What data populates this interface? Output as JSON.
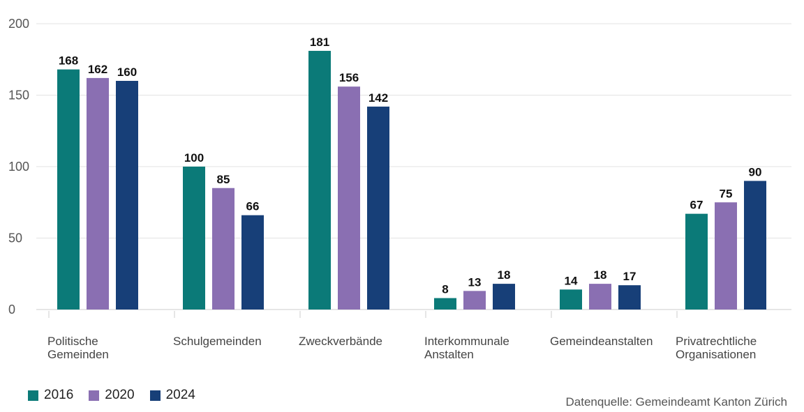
{
  "chart_data": {
    "type": "bar",
    "categories": [
      [
        "Politische",
        "Gemeinden"
      ],
      [
        "Schulgemeinden"
      ],
      [
        "Zweckverbände"
      ],
      [
        "Interkommunale",
        "Anstalten"
      ],
      [
        "Gemeindeanstalten"
      ],
      [
        "Privatrechtliche",
        "Organisationen"
      ]
    ],
    "series": [
      {
        "name": "2016",
        "color": "#0b7a78",
        "values": [
          168,
          100,
          181,
          8,
          14,
          67
        ]
      },
      {
        "name": "2020",
        "color": "#8a6fb2",
        "values": [
          162,
          85,
          156,
          13,
          18,
          75
        ]
      },
      {
        "name": "2024",
        "color": "#173f78",
        "values": [
          160,
          66,
          142,
          18,
          17,
          90
        ]
      }
    ],
    "yticks": [
      0,
      50,
      100,
      150,
      200
    ],
    "ylim": [
      0,
      200
    ],
    "grid": true,
    "legend_position": "bottom-left",
    "title": "",
    "xlabel": "",
    "ylabel": ""
  },
  "source": "Datenquelle: Gemeindeamt Kanton Zürich"
}
